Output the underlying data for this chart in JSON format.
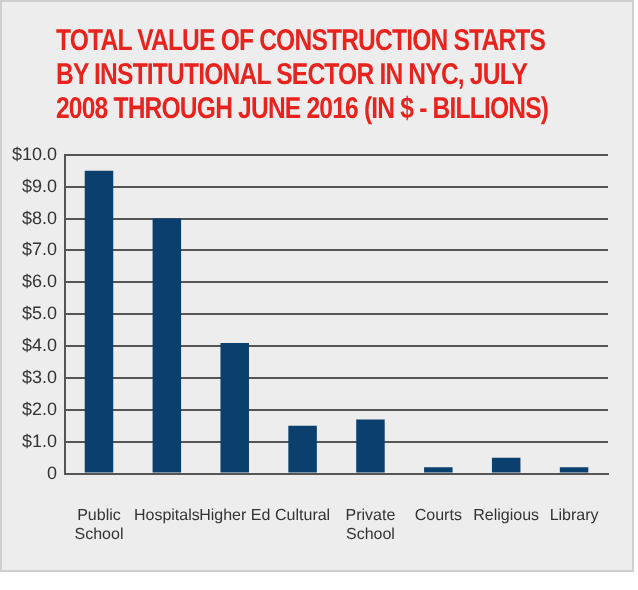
{
  "chart_data": {
    "type": "bar",
    "title": "TOTAL VALUE OF CONSTRUCTION STARTS BY INSTITUTIONAL SECTOR IN NYC, JULY 2008 THROUGH JUNE 2016 (IN $ - BILLIONS)",
    "categories": [
      "Public School",
      "Hospitals",
      "Higher Ed",
      "Cultural",
      "Private School",
      "Courts",
      "Religious",
      "Library"
    ],
    "values": [
      9.5,
      8.0,
      4.1,
      1.5,
      1.7,
      0.2,
      0.5,
      0.2
    ],
    "color": "#0b3f6e",
    "ylim": [
      0,
      10
    ],
    "yticks": [
      0,
      {
        "value": 1,
        "label": "$1.0"
      },
      {
        "value": 2,
        "label": "$2.0"
      },
      {
        "value": 3,
        "label": "$3.0"
      },
      {
        "value": 4,
        "label": "$4.0"
      },
      {
        "value": 5,
        "label": "$5.0"
      },
      {
        "value": 6,
        "label": "$6.0"
      },
      {
        "value": 7,
        "label": "$7.0"
      },
      {
        "value": 8,
        "label": "$8.0"
      },
      {
        "value": 9,
        "label": "$9.0"
      },
      {
        "value": 10,
        "label": "$10.0"
      }
    ],
    "grid": "y",
    "legend": false
  }
}
